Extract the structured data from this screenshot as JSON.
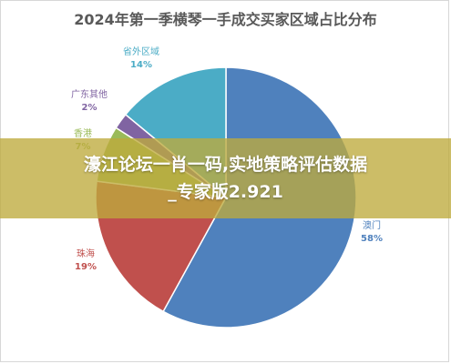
{
  "chart_data": {
    "type": "pie",
    "title": "2024年第一季横琴一手成交买家区域占比分布",
    "slices": [
      {
        "label": "澳门",
        "value": 58,
        "pct": "58%",
        "color": "#4F81BD"
      },
      {
        "label": "珠海",
        "value": 19,
        "pct": "19%",
        "color": "#C0504D"
      },
      {
        "label": "香港",
        "value": 7,
        "pct": "7%",
        "color": "#9BBB59"
      },
      {
        "label": "广东其他",
        "value": 2,
        "pct": "2%",
        "color": "#8064A2"
      },
      {
        "label": "省外区域",
        "value": 14,
        "pct": "14%",
        "color": "#4BACC6"
      }
    ],
    "legend": "none"
  },
  "overlay": {
    "line1": "濠江论坛一肖一码,实地策略评估数据",
    "line2": "_专家版2.921"
  }
}
